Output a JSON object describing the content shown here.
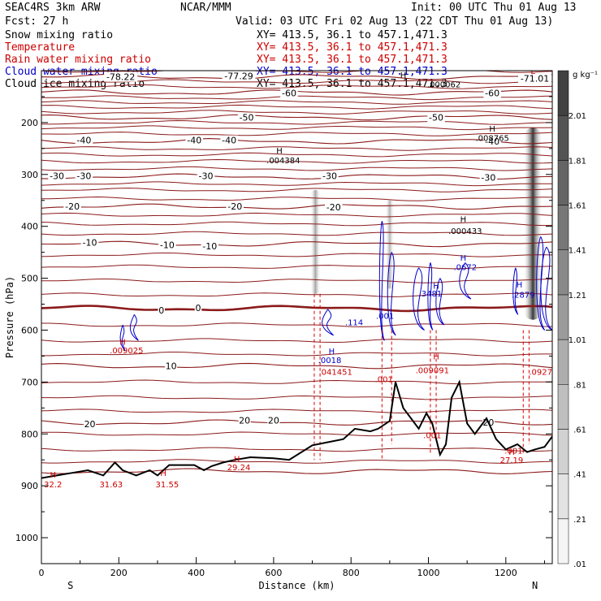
{
  "header": {
    "model": "SEAC4RS  3km ARW",
    "org": "NCAR/MMM",
    "init": "Init: 00 UTC Thu 01 Aug 13",
    "fcst": "Fcst:   27 h",
    "valid": "Valid: 03 UTC Fri 02 Aug 13 (22 CDT Thu 01 Aug 13)"
  },
  "legend": [
    {
      "name": "Snow mixing ratio",
      "xy": "XY= 413.5, 36.1 to 457.1,471.3",
      "color": "#000000"
    },
    {
      "name": "Temperature",
      "xy": "XY= 413.5, 36.1 to 457.1,471.3",
      "color": "#cc0000"
    },
    {
      "name": "Rain water mixing ratio",
      "xy": "XY= 413.5, 36.1 to 457.1,471.3",
      "color": "#cc0000"
    },
    {
      "name": "Cloud water mixing ratio",
      "xy": "XY= 413.5, 36.1 to 457.1,471.3",
      "color": "#0000cc"
    },
    {
      "name": "Cloud ice mixing ratio",
      "xy": "XY= 413.5, 36.1 to 457.1,471.3",
      "color": "#000000"
    }
  ],
  "chart_data": {
    "type": "cross-section",
    "xlabel": "Distance (km)",
    "ylabel": "Pressure (hPa)",
    "xlim": [
      0,
      1320
    ],
    "ylim": [
      1050,
      100
    ],
    "x_ticks": [
      0,
      200,
      400,
      600,
      800,
      1000,
      1200
    ],
    "y_ticks": [
      200,
      300,
      400,
      500,
      600,
      700,
      800,
      900,
      1000
    ],
    "left_label": "S",
    "right_label": "N",
    "colorbar": {
      "unit": "g kg⁻¹",
      "levels": [
        ".01",
        ".21",
        ".41",
        ".61",
        ".81",
        "1.01",
        "1.21",
        "1.41",
        "1.61",
        "1.81",
        "2.01"
      ],
      "level_values": [
        0.01,
        0.21,
        0.41,
        0.61,
        0.81,
        1.01,
        1.21,
        1.41,
        1.61,
        1.81,
        2.01
      ]
    },
    "temperature_labels": [
      {
        "text": "-77.29",
        "x": 510,
        "p": 110
      },
      {
        "text": "-78.22",
        "x": 205,
        "p": 112
      },
      {
        "text": "-71.01",
        "x": 1275,
        "p": 115
      },
      {
        "text": "-60",
        "x": 640,
        "p": 143
      },
      {
        "text": "-60",
        "x": 1165,
        "p": 143
      },
      {
        "text": "-50",
        "x": 530,
        "p": 190
      },
      {
        "text": "-50",
        "x": 1020,
        "p": 190
      },
      {
        "text": "-40",
        "x": 110,
        "p": 234
      },
      {
        "text": "-40",
        "x": 395,
        "p": 234
      },
      {
        "text": "-40",
        "x": 485,
        "p": 234
      },
      {
        "text": "-40",
        "x": 1165,
        "p": 236
      },
      {
        "text": "-30",
        "x": 40,
        "p": 303
      },
      {
        "text": "-30",
        "x": 110,
        "p": 303
      },
      {
        "text": "-30",
        "x": 425,
        "p": 303
      },
      {
        "text": "-30",
        "x": 745,
        "p": 303
      },
      {
        "text": "-30",
        "x": 1155,
        "p": 306
      },
      {
        "text": "-20",
        "x": 80,
        "p": 361
      },
      {
        "text": "-20",
        "x": 500,
        "p": 361
      },
      {
        "text": "-20",
        "x": 755,
        "p": 363
      },
      {
        "text": "-10",
        "x": 125,
        "p": 431
      },
      {
        "text": "-10",
        "x": 325,
        "p": 436
      },
      {
        "text": "-10",
        "x": 435,
        "p": 438
      },
      {
        "text": "0",
        "x": 310,
        "p": 562
      },
      {
        "text": "0",
        "x": 405,
        "p": 557
      },
      {
        "text": "10",
        "x": 335,
        "p": 669
      },
      {
        "text": "20",
        "x": 125,
        "p": 781
      },
      {
        "text": "20",
        "x": 525,
        "p": 774
      },
      {
        "text": "20",
        "x": 600,
        "p": 774
      },
      {
        "text": "20",
        "x": 1155,
        "p": 778
      }
    ],
    "temperature_isotherms_C": [
      -70,
      -60,
      -50,
      -40,
      -30,
      -20,
      -10,
      0,
      10,
      20,
      30
    ],
    "high_labels": [
      {
        "text": "H",
        "x": 30,
        "p": 878,
        "color": "#cc0000"
      },
      {
        "text": "32.2",
        "x": 30,
        "p": 897,
        "color": "#cc0000"
      },
      {
        "text": "31.63",
        "x": 180,
        "p": 897,
        "color": "#cc0000"
      },
      {
        "text": "H",
        "x": 315,
        "p": 875,
        "color": "#cc0000"
      },
      {
        "text": "31.55",
        "x": 325,
        "p": 897,
        "color": "#cc0000"
      },
      {
        "text": "H",
        "x": 505,
        "p": 847,
        "color": "#cc0000"
      },
      {
        "text": "29.24",
        "x": 510,
        "p": 864,
        "color": "#cc0000"
      },
      {
        "text": "H",
        "x": 1215,
        "p": 834,
        "color": "#cc0000"
      },
      {
        "text": "27.19",
        "x": 1215,
        "p": 850,
        "color": "#cc0000"
      },
      {
        "text": "H",
        "x": 210,
        "p": 622,
        "color": "#cc0000"
      },
      {
        "text": ".009025",
        "x": 220,
        "p": 638,
        "color": "#cc0000"
      },
      {
        "text": "H",
        "x": 750,
        "p": 640,
        "color": "#0000cc"
      },
      {
        "text": ".0018",
        "x": 745,
        "p": 657,
        "color": "#0000cc"
      },
      {
        "text": ".041451",
        "x": 760,
        "p": 680,
        "color": "#cc0000"
      },
      {
        "text": ".001",
        "x": 885,
        "p": 694,
        "color": "#cc0000"
      },
      {
        "text": "H",
        "x": 1020,
        "p": 650,
        "color": "#cc0000"
      },
      {
        "text": ".009091",
        "x": 1010,
        "p": 677,
        "color": "#cc0000"
      },
      {
        "text": ".0927",
        "x": 1290,
        "p": 680,
        "color": "#cc0000"
      },
      {
        "text": ".001",
        "x": 1220,
        "p": 832,
        "color": "#cc0000"
      },
      {
        "text": ".001",
        "x": 1010,
        "p": 802,
        "color": "#cc0000"
      },
      {
        "text": ".114",
        "x": 808,
        "p": 584,
        "color": "#0000cc"
      },
      {
        "text": ".001",
        "x": 888,
        "p": 572,
        "color": "#0000cc"
      },
      {
        "text": ".3481",
        "x": 1005,
        "p": 529,
        "color": "#0000cc"
      },
      {
        "text": "H",
        "x": 1020,
        "p": 514,
        "color": "#0000cc"
      },
      {
        "text": "H",
        "x": 1235,
        "p": 512,
        "color": "#0000cc"
      },
      {
        "text": ".2879",
        "x": 1245,
        "p": 531,
        "color": "#0000cc"
      },
      {
        "text": "H",
        "x": 1090,
        "p": 460,
        "color": "#0000cc"
      },
      {
        "text": ".0672",
        "x": 1095,
        "p": 478,
        "color": "#0000cc"
      },
      {
        "text": "H",
        "x": 1090,
        "p": 386,
        "color": "#000000"
      },
      {
        "text": ".000433",
        "x": 1095,
        "p": 408,
        "color": "#000000"
      },
      {
        "text": "H",
        "x": 615,
        "p": 253,
        "color": "#000000"
      },
      {
        "text": ".004384",
        "x": 625,
        "p": 272,
        "color": "#000000"
      },
      {
        "text": "H",
        "x": 1165,
        "p": 211,
        "color": "#000000"
      },
      {
        "text": ".008765",
        "x": 1165,
        "p": 229,
        "color": "#000000"
      },
      {
        "text": "H",
        "x": 935,
        "p": 108,
        "color": "#000000"
      },
      {
        "text": ".000062",
        "x": 1040,
        "p": 126,
        "color": "#000000"
      },
      {
        "text": "L",
        "x": 1270,
        "p": 100,
        "color": "#cc0000"
      }
    ],
    "snow_max_g_kg": [
      {
        "x": 708,
        "p_top": 330,
        "p_bot": 530,
        "peak": 0.8
      },
      {
        "x": 900,
        "p_top": 350,
        "p_bot": 520,
        "peak": 0.6
      },
      {
        "x": 1270,
        "p_top": 210,
        "p_bot": 580,
        "peak": 2.0
      }
    ]
  }
}
